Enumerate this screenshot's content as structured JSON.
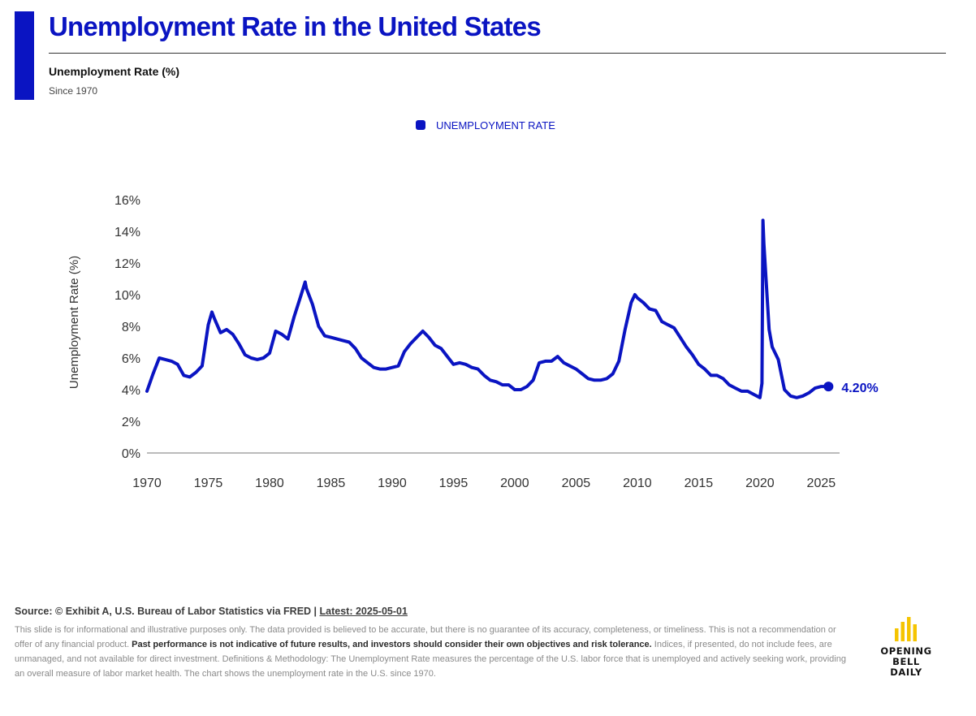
{
  "header": {
    "title": "Unemployment Rate in the United States",
    "subtitle": "Unemployment Rate (%)",
    "note": "Since 1970"
  },
  "colors": {
    "accent": "#0a14c2",
    "line": "#0a14c2",
    "logo": "#f5c400"
  },
  "chart_data": {
    "type": "line",
    "legend": {
      "label": "UNEMPLOYMENT RATE",
      "position": "top-center"
    },
    "ylabel": "Unemployment Rate (%)",
    "xlabel": "",
    "xlim": [
      1970,
      2026.5
    ],
    "ylim": [
      0,
      16
    ],
    "y_ticks": [
      "0%",
      "2%",
      "4%",
      "6%",
      "8%",
      "10%",
      "12%",
      "14%",
      "16%"
    ],
    "x_ticks": [
      "1970",
      "1975",
      "1980",
      "1985",
      "1990",
      "1995",
      "2000",
      "2005",
      "2010",
      "2015",
      "2020",
      "2025"
    ],
    "grid": false,
    "series": [
      {
        "name": "UNEMPLOYMENT RATE",
        "x": [
          1970.0,
          1970.5,
          1971.0,
          1971.5,
          1972.0,
          1972.5,
          1973.0,
          1973.5,
          1974.0,
          1974.5,
          1975.0,
          1975.3,
          1975.5,
          1976.0,
          1976.5,
          1977.0,
          1977.5,
          1978.0,
          1978.5,
          1979.0,
          1979.5,
          1980.0,
          1980.5,
          1981.0,
          1981.5,
          1982.0,
          1982.5,
          1982.9,
          1983.0,
          1983.5,
          1984.0,
          1984.5,
          1985.0,
          1985.5,
          1986.0,
          1986.5,
          1987.0,
          1987.5,
          1988.0,
          1988.5,
          1989.0,
          1989.5,
          1990.0,
          1990.5,
          1991.0,
          1991.5,
          1992.0,
          1992.5,
          1993.0,
          1993.5,
          1994.0,
          1994.5,
          1995.0,
          1995.5,
          1996.0,
          1996.5,
          1997.0,
          1997.5,
          1998.0,
          1998.5,
          1999.0,
          1999.5,
          2000.0,
          2000.5,
          2001.0,
          2001.5,
          2002.0,
          2002.5,
          2003.0,
          2003.5,
          2004.0,
          2004.5,
          2005.0,
          2005.5,
          2006.0,
          2006.5,
          2007.0,
          2007.5,
          2008.0,
          2008.5,
          2009.0,
          2009.5,
          2009.8,
          2010.0,
          2010.5,
          2011.0,
          2011.5,
          2012.0,
          2012.5,
          2013.0,
          2013.5,
          2014.0,
          2014.5,
          2015.0,
          2015.5,
          2016.0,
          2016.5,
          2017.0,
          2017.5,
          2018.0,
          2018.5,
          2019.0,
          2019.5,
          2020.0,
          2020.17,
          2020.25,
          2020.33,
          2020.5,
          2020.75,
          2021.0,
          2021.5,
          2022.0,
          2022.5,
          2023.0,
          2023.5,
          2024.0,
          2024.5,
          2025.0,
          2025.33
        ],
        "y": [
          3.9,
          5.0,
          6.0,
          5.9,
          5.8,
          5.6,
          4.9,
          4.8,
          5.1,
          5.5,
          8.1,
          8.9,
          8.5,
          7.6,
          7.8,
          7.5,
          6.9,
          6.2,
          6.0,
          5.9,
          6.0,
          6.3,
          7.7,
          7.5,
          7.2,
          8.6,
          9.8,
          10.8,
          10.4,
          9.4,
          8.0,
          7.4,
          7.3,
          7.2,
          7.1,
          7.0,
          6.6,
          6.0,
          5.7,
          5.4,
          5.3,
          5.3,
          5.4,
          5.5,
          6.4,
          6.9,
          7.3,
          7.7,
          7.3,
          6.8,
          6.6,
          6.1,
          5.6,
          5.7,
          5.6,
          5.4,
          5.3,
          4.9,
          4.6,
          4.5,
          4.3,
          4.3,
          4.0,
          4.0,
          4.2,
          4.6,
          5.7,
          5.8,
          5.8,
          6.1,
          5.7,
          5.5,
          5.3,
          5.0,
          4.7,
          4.6,
          4.6,
          4.7,
          5.0,
          5.8,
          7.8,
          9.5,
          10.0,
          9.8,
          9.5,
          9.1,
          9.0,
          8.3,
          8.1,
          7.9,
          7.3,
          6.7,
          6.2,
          5.6,
          5.3,
          4.9,
          4.9,
          4.7,
          4.3,
          4.1,
          3.9,
          3.9,
          3.7,
          3.5,
          4.4,
          14.7,
          13.2,
          11.0,
          7.8,
          6.7,
          5.9,
          4.0,
          3.6,
          3.5,
          3.6,
          3.8,
          4.1,
          4.2,
          4.2
        ],
        "end_label": "4.20%"
      }
    ]
  },
  "footer": {
    "source_label": "Source: © Exhibit A, U.S. Bureau of Labor Statistics via FRED | ",
    "latest_label": "Latest: 2025-05-01",
    "disclaimer_1": "This slide is for informational and illustrative purposes only. The data provided is believed to be accurate, but there is no guarantee of its accuracy, completeness, or timeliness. This is not a recommendation or offer of any financial product. ",
    "disclaimer_bold": "Past performance is not indicative of future results, and investors should consider their own objectives and risk tolerance.",
    "disclaimer_2": " Indices, if presented, do not include fees, are unmanaged, and not available for direct investment. Definitions & Methodology: The Unemployment Rate measures the percentage of the U.S. labor force that is unemployed and actively seeking work, providing an overall measure of labor market health. The chart shows the unemployment rate in the U.S. since 1970."
  },
  "logo": {
    "line1": "OPENING BELL",
    "line2": "DAILY"
  }
}
